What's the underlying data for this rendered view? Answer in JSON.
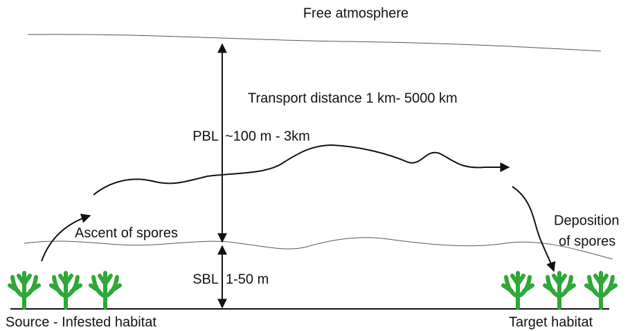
{
  "labels": {
    "free_atmosphere": "Free atmosphere",
    "transport": "Transport distance 1 km- 5000 km",
    "pbl": "PBL",
    "pbl_range": "~100 m - 3km",
    "ascent": "Ascent of spores",
    "deposition_line1": "Deposition",
    "deposition_line2": "of spores",
    "sbl": "SBL",
    "sbl_range": "1-50 m",
    "source": "Source - Infested habitat",
    "target": "Target habitat"
  }
}
